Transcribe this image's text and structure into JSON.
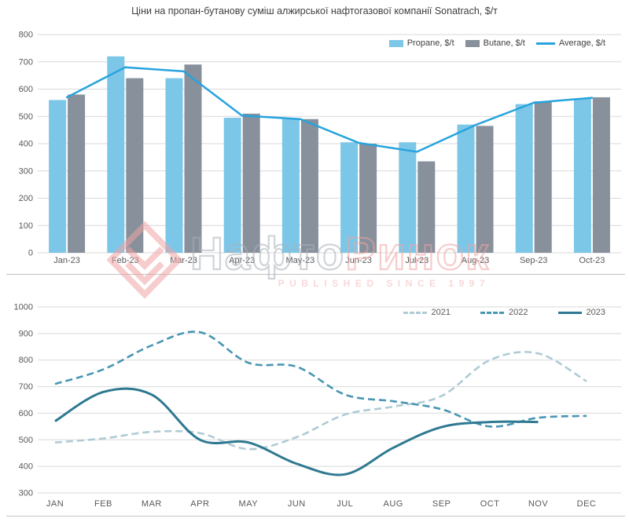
{
  "watermark": {
    "brand_part1": "Нафто",
    "brand_part2": "Ринок",
    "tagline": "PUBLISHED SINCE 1997",
    "pink": "#f0a4a4",
    "gray": "#a9b1ba"
  },
  "chart_data": [
    {
      "type": "bar",
      "subtype": "grouped-bars-with-line",
      "title": "Ціни на пропан-бутанову суміш алжирської нафтогазової компанії Sonatrach, $/т",
      "categories": [
        "Jan-23",
        "Feb-23",
        "Mar-23",
        "Apr-23",
        "May-23",
        "Jun-23",
        "Jul-23",
        "Aug-23",
        "Sep-23",
        "Oct-23"
      ],
      "series": [
        {
          "name": "Propane, $/t",
          "kind": "bar",
          "color": "#7cc7e8",
          "values": [
            560,
            720,
            640,
            495,
            490,
            405,
            405,
            470,
            545,
            565
          ]
        },
        {
          "name": "Butane, $/t",
          "kind": "bar",
          "color": "#87909b",
          "values": [
            580,
            640,
            690,
            510,
            490,
            400,
            335,
            465,
            555,
            570
          ]
        },
        {
          "name": "Average, $/t",
          "kind": "line",
          "color": "#27a3dd",
          "values": [
            570,
            680,
            665,
            503,
            490,
            403,
            370,
            468,
            550,
            568
          ]
        }
      ],
      "ylim": [
        0,
        800
      ],
      "yticks": [
        0,
        100,
        200,
        300,
        400,
        500,
        600,
        700,
        800
      ],
      "grid": true,
      "legend_position": "top-right"
    },
    {
      "type": "line",
      "title": "",
      "categories": [
        "JAN",
        "FEB",
        "MAR",
        "APR",
        "MAY",
        "JUN",
        "JUL",
        "AUG",
        "SEP",
        "OCT",
        "NOV",
        "DEC"
      ],
      "series": [
        {
          "name": "2021",
          "style": "dashed",
          "color": "#afcbd5",
          "values": [
            490,
            505,
            530,
            525,
            465,
            510,
            595,
            625,
            665,
            800,
            825,
            720
          ]
        },
        {
          "name": "2022",
          "style": "dashed",
          "color": "#4896b2",
          "values": [
            710,
            765,
            855,
            905,
            790,
            775,
            670,
            645,
            615,
            550,
            583,
            590
          ]
        },
        {
          "name": "2023",
          "style": "solid",
          "color": "#2e7991",
          "values": [
            570,
            680,
            670,
            500,
            490,
            410,
            370,
            470,
            548,
            567,
            567,
            null
          ]
        }
      ],
      "ylim": [
        300,
        1000
      ],
      "yticks": [
        300,
        400,
        500,
        600,
        700,
        800,
        900,
        1000
      ],
      "grid": true,
      "smooth": true,
      "legend_position": "top-right"
    }
  ]
}
